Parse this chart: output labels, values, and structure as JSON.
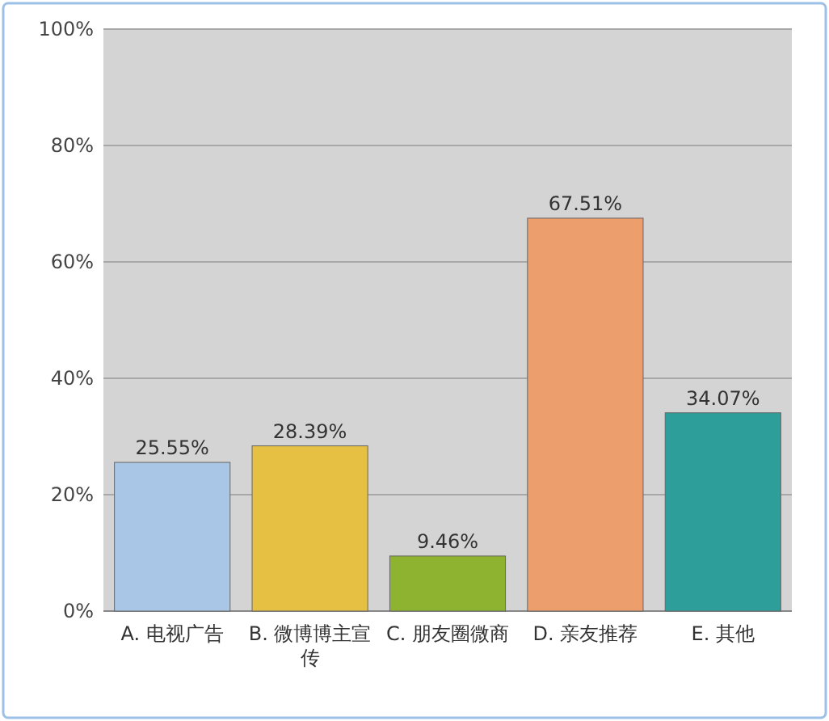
{
  "chart_data": {
    "type": "bar",
    "categories": [
      "A. 电视广告",
      "B. 微博博主宣传",
      "C. 朋友圈微商",
      "D. 亲友推荐",
      "E. 其他"
    ],
    "values": [
      25.55,
      28.39,
      9.46,
      67.51,
      34.07
    ],
    "value_labels": [
      "25.55%",
      "28.39%",
      "9.46%",
      "67.51%",
      "34.07%"
    ],
    "colors": [
      "#a9c6e6",
      "#e6c043",
      "#8db330",
      "#ec9e6c",
      "#2e9e9a"
    ],
    "ylim": [
      0,
      100
    ],
    "yticks": [
      {
        "value": 0,
        "label": "0%"
      },
      {
        "value": 20,
        "label": "20%"
      },
      {
        "value": 40,
        "label": "40%"
      },
      {
        "value": 60,
        "label": "60%"
      },
      {
        "value": 80,
        "label": "80%"
      },
      {
        "value": 100,
        "label": "100%"
      }
    ],
    "grid": "y"
  }
}
